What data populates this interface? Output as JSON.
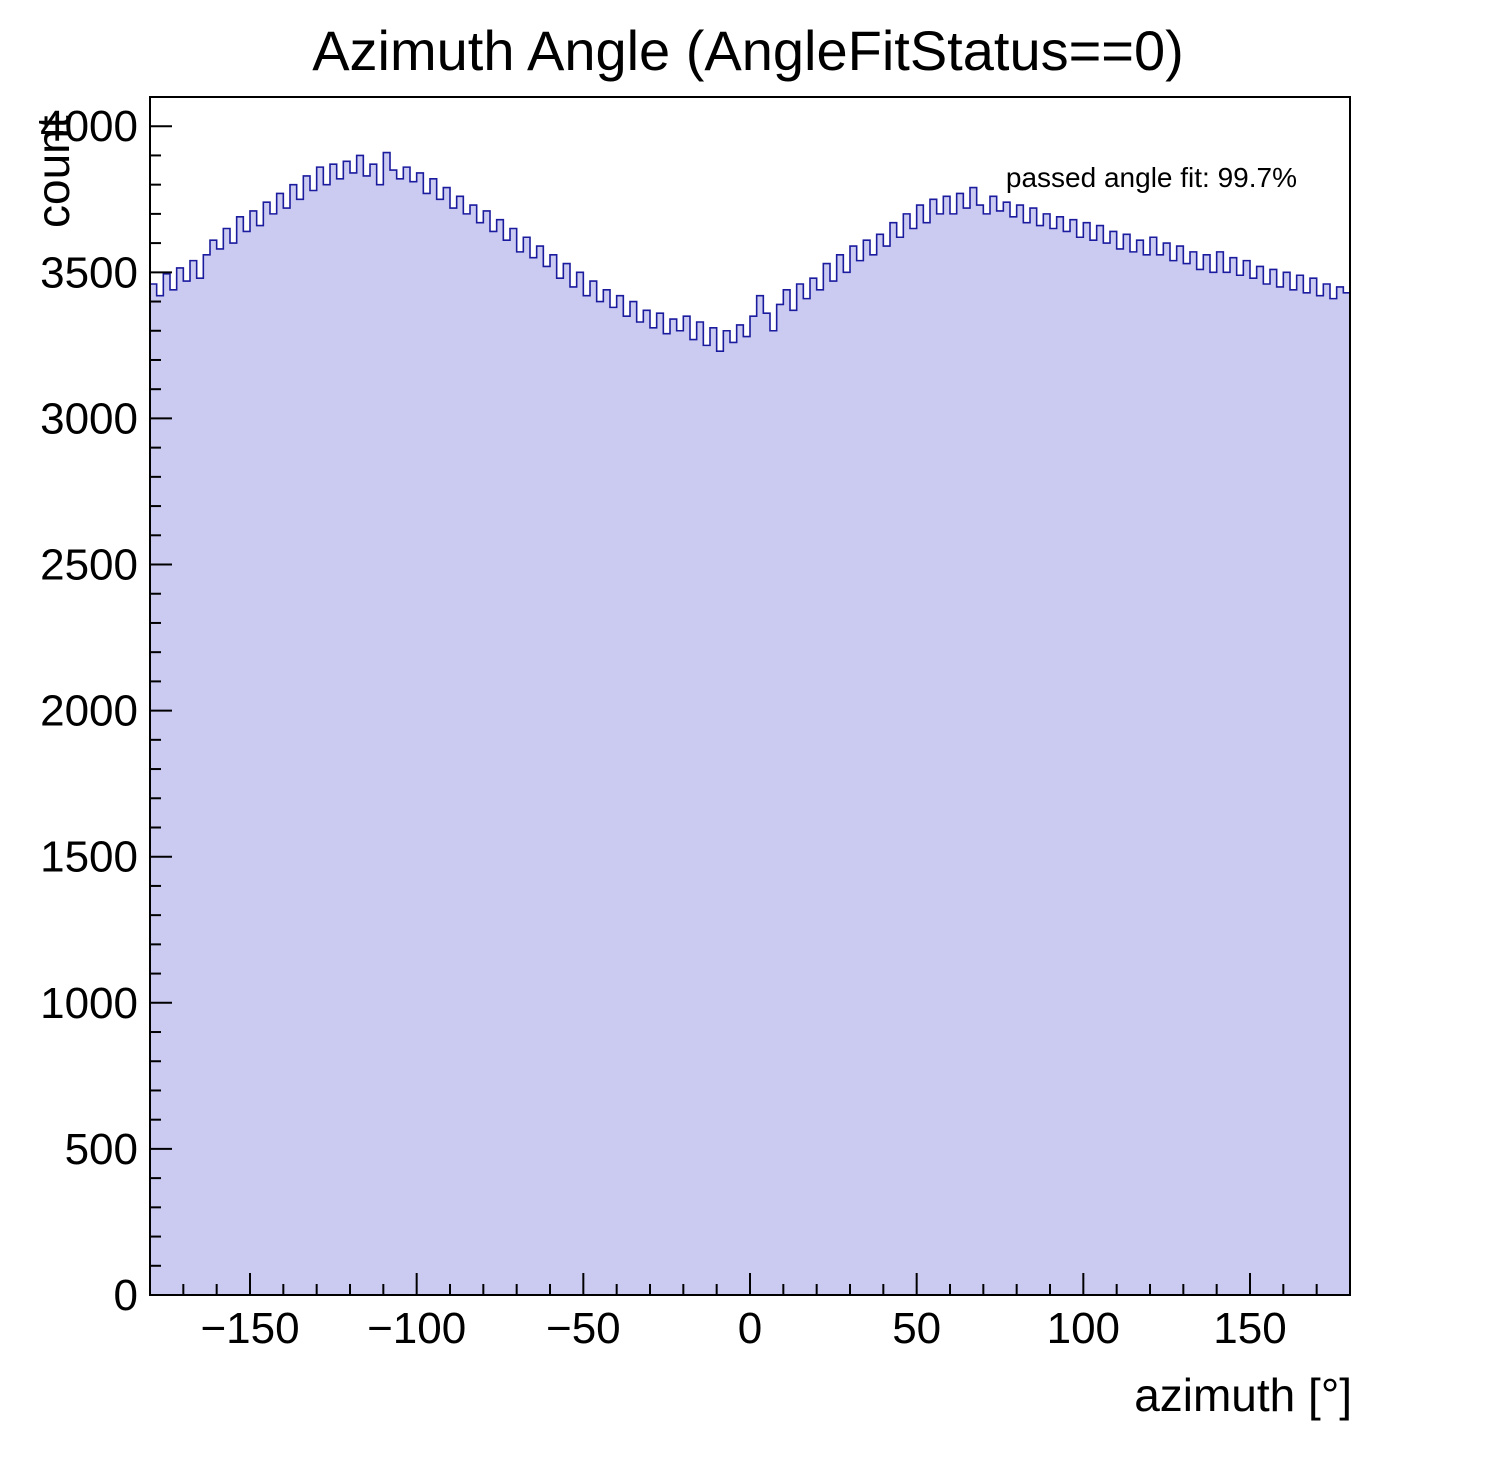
{
  "title": "Azimuth Angle (AngleFitStatus==0)",
  "annotation": "passed angle fit: 99.7%",
  "colors": {
    "fill": "#cbcbf2",
    "line": "#1b1b9e",
    "axis": "#000000",
    "background": "#ffffff"
  },
  "chart_data": {
    "type": "bar",
    "title": "Azimuth Angle (AngleFitStatus==0)",
    "xlabel": "azimuth [°]",
    "ylabel": "count",
    "annotation": "passed angle fit: 99.7%",
    "legend_position": "top-right",
    "grid": false,
    "xlim": [
      -180,
      180
    ],
    "ylim": [
      0,
      4100
    ],
    "bin_start": -180,
    "bin_width": 2,
    "x_ticks": {
      "major_step": 50,
      "minor_step": 10,
      "labels": [
        {
          "v": -150,
          "t": "−150"
        },
        {
          "v": -100,
          "t": "−100"
        },
        {
          "v": -50,
          "t": "−50"
        },
        {
          "v": 0,
          "t": "0"
        },
        {
          "v": 50,
          "t": "50"
        },
        {
          "v": 100,
          "t": "100"
        },
        {
          "v": 150,
          "t": "150"
        }
      ]
    },
    "y_ticks": {
      "major_step": 500,
      "minor_step": 100,
      "labels": [
        {
          "v": 0,
          "t": "0"
        },
        {
          "v": 500,
          "t": "500"
        },
        {
          "v": 1000,
          "t": "1000"
        },
        {
          "v": 1500,
          "t": "1500"
        },
        {
          "v": 2000,
          "t": "2000"
        },
        {
          "v": 2500,
          "t": "2500"
        },
        {
          "v": 3000,
          "t": "3000"
        },
        {
          "v": 3500,
          "t": "3500"
        },
        {
          "v": 4000,
          "t": "4000"
        }
      ]
    },
    "counts": [
      3460,
      3420,
      3495,
      3440,
      3515,
      3470,
      3540,
      3480,
      3560,
      3610,
      3580,
      3650,
      3600,
      3690,
      3640,
      3710,
      3660,
      3740,
      3700,
      3770,
      3720,
      3800,
      3750,
      3830,
      3780,
      3860,
      3800,
      3870,
      3820,
      3880,
      3840,
      3900,
      3830,
      3870,
      3800,
      3910,
      3850,
      3820,
      3860,
      3810,
      3840,
      3770,
      3820,
      3750,
      3790,
      3720,
      3760,
      3700,
      3730,
      3670,
      3710,
      3640,
      3680,
      3610,
      3650,
      3570,
      3620,
      3550,
      3590,
      3520,
      3560,
      3480,
      3530,
      3450,
      3500,
      3420,
      3470,
      3400,
      3440,
      3380,
      3420,
      3350,
      3400,
      3330,
      3370,
      3310,
      3360,
      3290,
      3340,
      3300,
      3350,
      3270,
      3330,
      3250,
      3310,
      3230,
      3300,
      3260,
      3320,
      3280,
      3350,
      3420,
      3360,
      3300,
      3390,
      3440,
      3370,
      3460,
      3410,
      3480,
      3440,
      3530,
      3470,
      3560,
      3500,
      3590,
      3540,
      3610,
      3560,
      3630,
      3590,
      3670,
      3620,
      3700,
      3650,
      3730,
      3670,
      3750,
      3700,
      3760,
      3700,
      3770,
      3720,
      3790,
      3730,
      3700,
      3760,
      3710,
      3740,
      3690,
      3730,
      3670,
      3720,
      3660,
      3700,
      3650,
      3690,
      3640,
      3680,
      3620,
      3670,
      3610,
      3660,
      3600,
      3640,
      3580,
      3630,
      3570,
      3610,
      3560,
      3620,
      3560,
      3600,
      3540,
      3590,
      3530,
      3570,
      3510,
      3560,
      3500,
      3570,
      3500,
      3550,
      3490,
      3540,
      3480,
      3520,
      3460,
      3510,
      3450,
      3500,
      3440,
      3490,
      3430,
      3480,
      3420,
      3460,
      3410,
      3450,
      3430
    ]
  }
}
